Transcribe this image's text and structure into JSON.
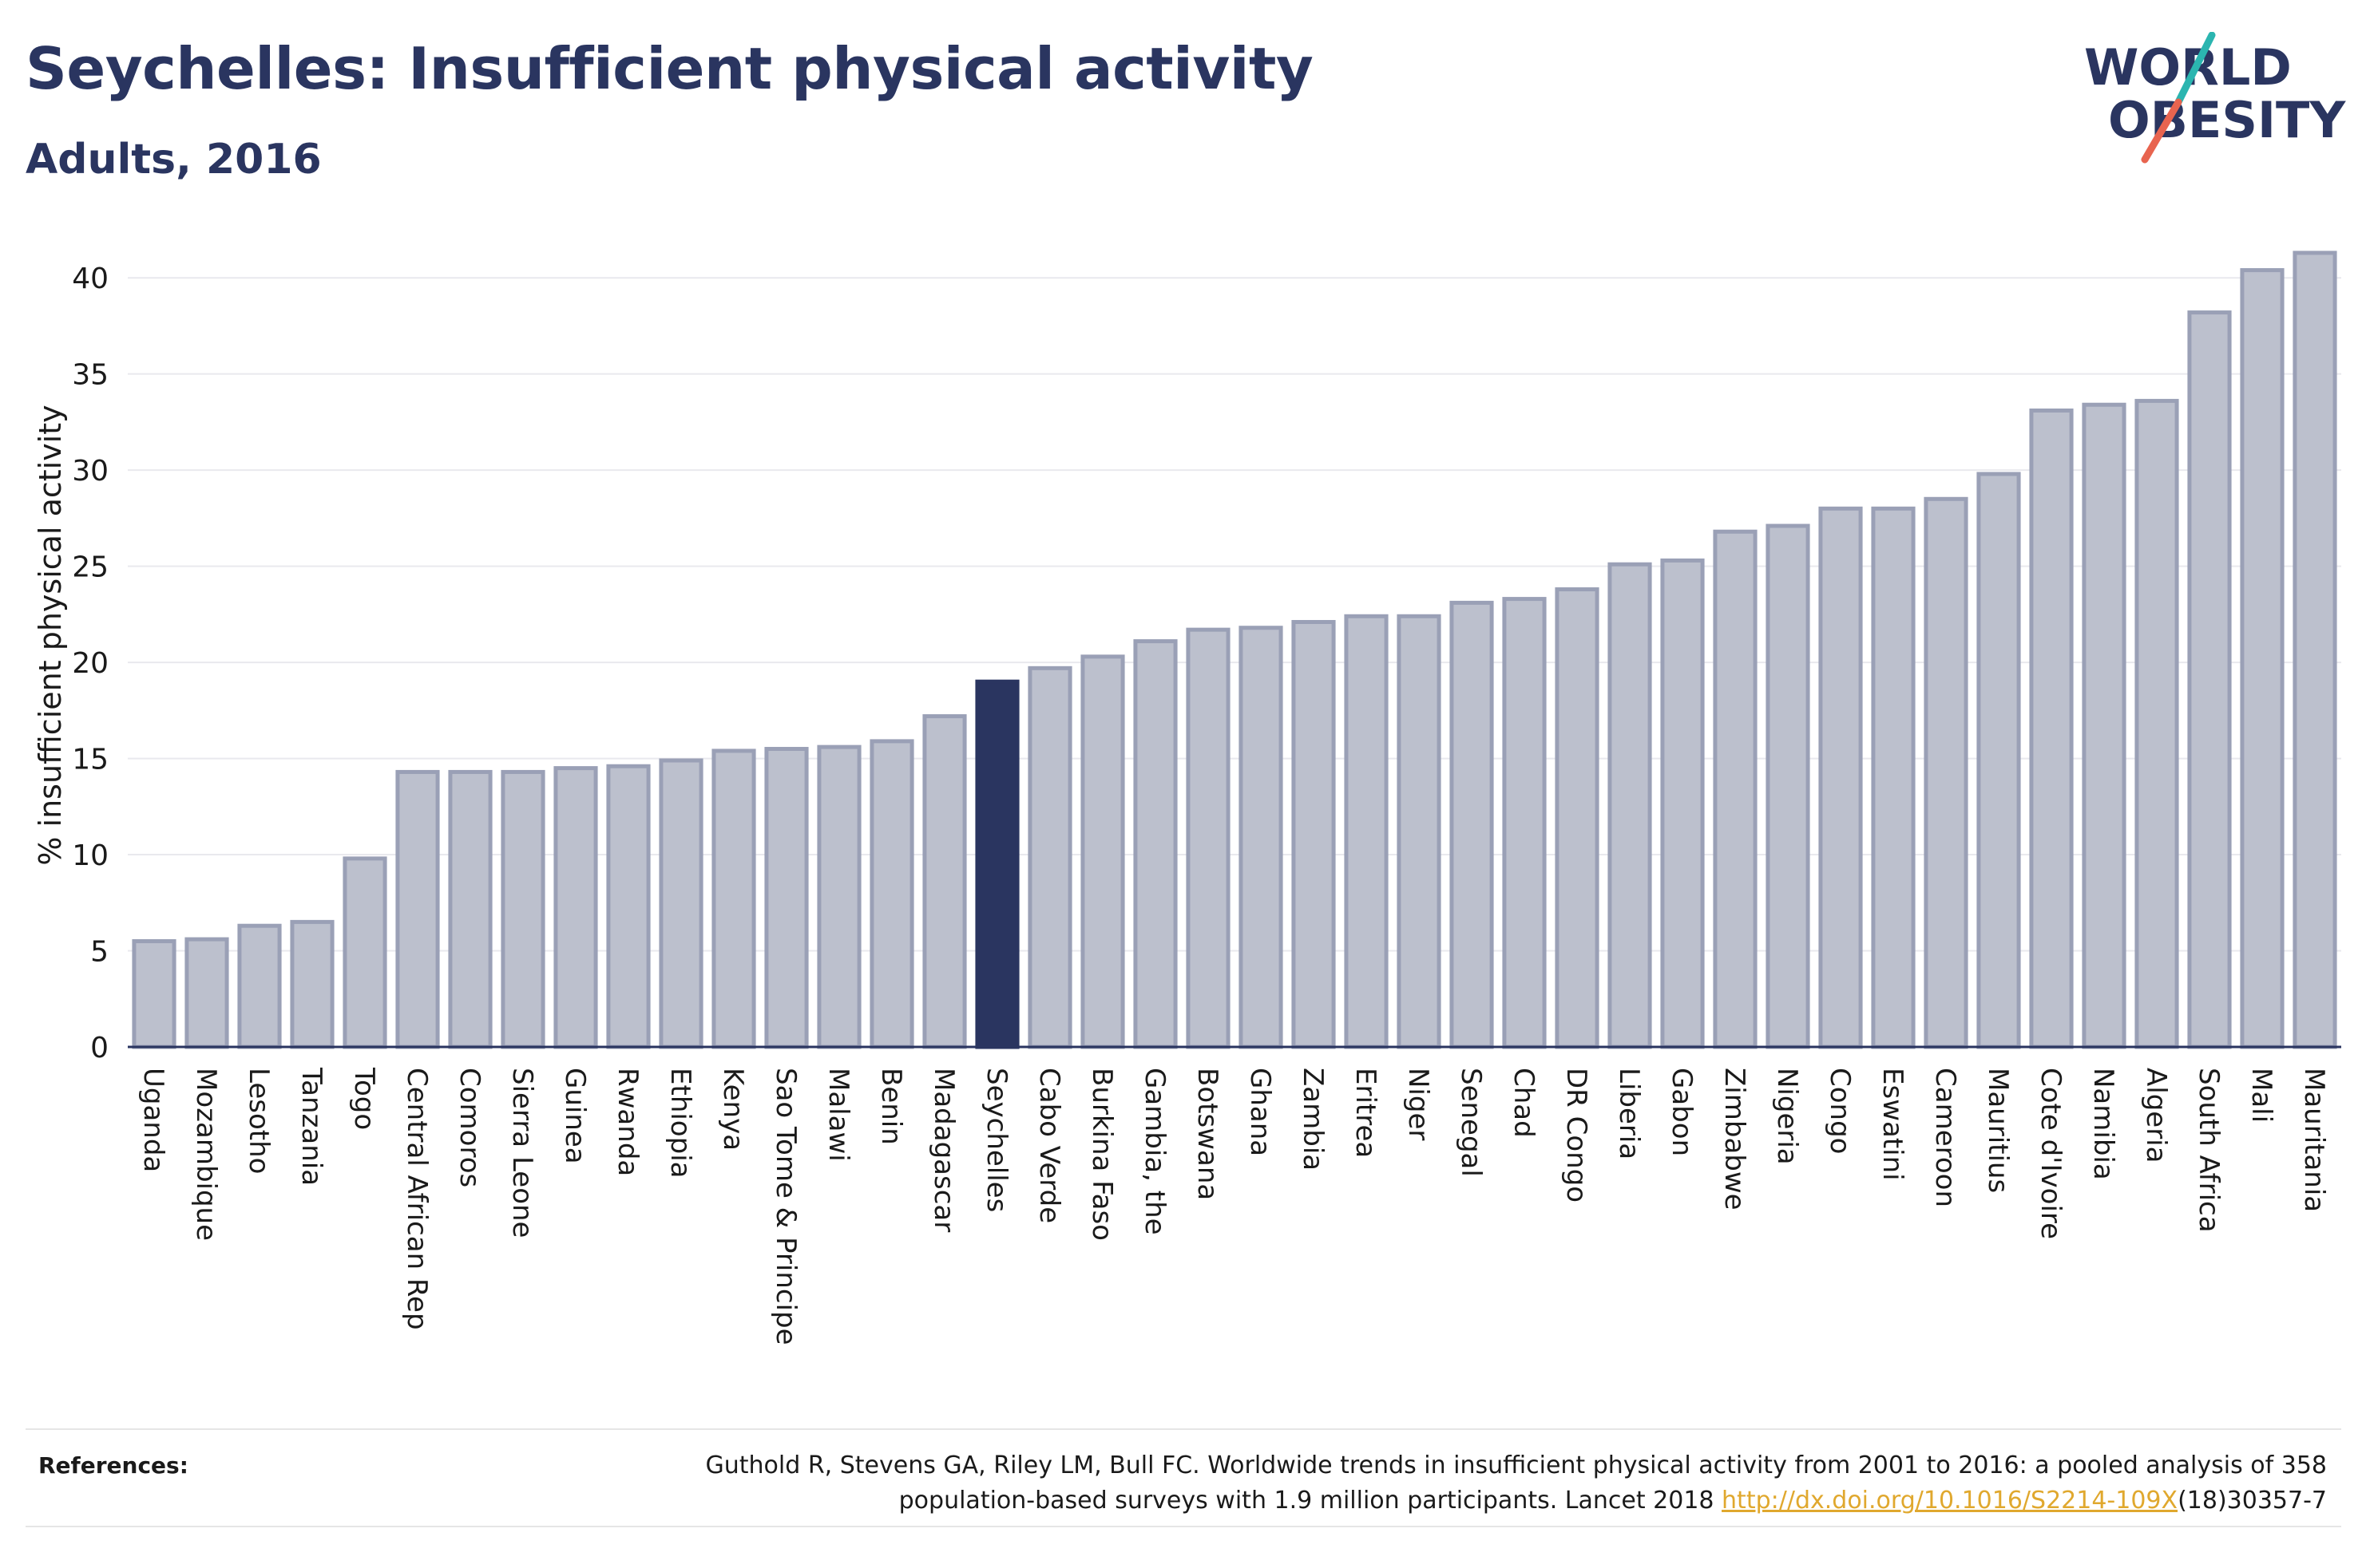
{
  "header": {
    "title": "Seychelles: Insufficient physical activity",
    "subtitle": "Adults, 2016"
  },
  "logo": {
    "line1": "WORLD",
    "line2": "OBESITY",
    "colors": {
      "text": "#2a3560",
      "slash_teal": "#2bb5b0",
      "slash_coral": "#e8644f"
    }
  },
  "chart_data": {
    "type": "bar",
    "title": "Seychelles: Insufficient physical activity",
    "subtitle": "Adults, 2016",
    "xlabel": "",
    "ylabel": "% insufficient physical activity",
    "ylim": [
      0,
      42
    ],
    "yticks": [
      0,
      5,
      10,
      15,
      20,
      25,
      30,
      35,
      40
    ],
    "grid": true,
    "highlight": "Seychelles",
    "colors": {
      "bar": "#bcc0cd",
      "bar_edge": "#9aa0b6",
      "highlight": "#2a3560",
      "grid": "#e9e9ee",
      "axis": "#2a3560"
    },
    "categories": [
      "Uganda",
      "Mozambique",
      "Lesotho",
      "Tanzania",
      "Togo",
      "Central African Rep",
      "Comoros",
      "Sierra Leone",
      "Guinea",
      "Rwanda",
      "Ethiopia",
      "Kenya",
      "Sao Tome & Principe",
      "Malawi",
      "Benin",
      "Madagascar",
      "Seychelles",
      "Cabo Verde",
      "Burkina Faso",
      "Gambia, the",
      "Botswana",
      "Ghana",
      "Zambia",
      "Eritrea",
      "Niger",
      "Senegal",
      "Chad",
      "DR Congo",
      "Liberia",
      "Gabon",
      "Zimbabwe",
      "Nigeria",
      "Congo",
      "Eswatini",
      "Cameroon",
      "Mauritius",
      "Cote d'Ivoire",
      "Namibia",
      "Algeria",
      "South Africa",
      "Mali",
      "Mauritania"
    ],
    "values": [
      5.5,
      5.6,
      6.3,
      6.5,
      9.8,
      14.3,
      14.3,
      14.3,
      14.5,
      14.6,
      14.9,
      15.4,
      15.5,
      15.6,
      15.9,
      17.2,
      19.0,
      19.7,
      20.3,
      21.1,
      21.7,
      21.8,
      22.1,
      22.4,
      22.4,
      23.1,
      23.3,
      23.8,
      25.1,
      25.3,
      26.8,
      27.1,
      28.0,
      28.0,
      28.5,
      29.8,
      33.1,
      33.4,
      33.6,
      38.2,
      40.4,
      41.3
    ]
  },
  "references": {
    "label": "References:",
    "text_before": "Guthold R, Stevens GA, Riley LM, Bull FC. Worldwide trends in insufficient physical activity from 2001 to 2016: a pooled analysis of 358 population-based surveys with 1.9 million participants. Lancet 2018 ",
    "link": "http://dx.doi.org/10.1016/S2214-109X",
    "text_after": "(18)30357-7"
  }
}
